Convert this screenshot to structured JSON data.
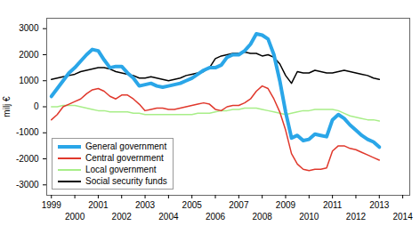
{
  "chart_data": {
    "type": "line",
    "y_label": "milj €",
    "x": [
      1999,
      1999.25,
      1999.5,
      1999.75,
      2000,
      2000.25,
      2000.5,
      2000.75,
      2001,
      2001.25,
      2001.5,
      2001.75,
      2002,
      2002.25,
      2002.5,
      2002.75,
      2003,
      2003.25,
      2003.5,
      2003.75,
      2004,
      2004.25,
      2004.5,
      2004.75,
      2005,
      2005.25,
      2005.5,
      2005.75,
      2006,
      2006.25,
      2006.5,
      2006.75,
      2007,
      2007.25,
      2007.5,
      2007.75,
      2008,
      2008.25,
      2008.5,
      2008.75,
      2009,
      2009.25,
      2009.5,
      2009.75,
      2010,
      2010.25,
      2010.5,
      2010.75,
      2011,
      2011.25,
      2011.5,
      2011.75,
      2012,
      2012.25,
      2012.5,
      2012.75,
      2013
    ],
    "series": [
      {
        "name": "General government",
        "color": "#2aa6e8",
        "values": [
          400,
          700,
          1000,
          1300,
          1500,
          1750,
          2000,
          2200,
          2150,
          1800,
          1500,
          1550,
          1550,
          1300,
          1100,
          800,
          850,
          900,
          800,
          750,
          800,
          850,
          900,
          1000,
          1100,
          1250,
          1400,
          1500,
          1500,
          1600,
          1900,
          2000,
          2000,
          2150,
          2400,
          2800,
          2750,
          2600,
          2000,
          1000,
          -200,
          -1200,
          -1100,
          -1300,
          -1250,
          -1050,
          -1100,
          -1150,
          -500,
          -300,
          -450,
          -700,
          -900,
          -1100,
          -1250,
          -1350,
          -1550
        ]
      },
      {
        "name": "Central government",
        "color": "#e0382c",
        "values": [
          -500,
          -300,
          0,
          100,
          200,
          300,
          500,
          650,
          700,
          600,
          400,
          300,
          450,
          450,
          300,
          100,
          -150,
          -100,
          -50,
          -50,
          -100,
          -100,
          -50,
          0,
          50,
          100,
          150,
          100,
          -100,
          -150,
          0,
          50,
          50,
          150,
          300,
          600,
          800,
          700,
          300,
          -200,
          -900,
          -1800,
          -2200,
          -2400,
          -2450,
          -2400,
          -2400,
          -2350,
          -1700,
          -1500,
          -1500,
          -1600,
          -1650,
          -1750,
          -1850,
          -1950,
          -2050
        ]
      },
      {
        "name": "Local government",
        "color": "#a8ee88",
        "values": [
          0,
          0,
          50,
          50,
          50,
          0,
          -50,
          -100,
          -150,
          -150,
          -200,
          -200,
          -200,
          -200,
          -250,
          -250,
          -300,
          -300,
          -300,
          -300,
          -300,
          -300,
          -300,
          -300,
          -300,
          -250,
          -250,
          -250,
          -200,
          -150,
          -150,
          -100,
          -100,
          -50,
          -50,
          -50,
          -100,
          -150,
          -200,
          -250,
          -300,
          -250,
          -200,
          -150,
          -150,
          -100,
          -100,
          -100,
          -100,
          -150,
          -250,
          -350,
          -400,
          -450,
          -500,
          -500,
          -550
        ]
      },
      {
        "name": "Social security funds",
        "color": "#000000",
        "values": [
          1050,
          1100,
          1150,
          1200,
          1250,
          1350,
          1400,
          1450,
          1500,
          1500,
          1450,
          1350,
          1300,
          1250,
          1200,
          1100,
          1100,
          1150,
          1100,
          1050,
          1000,
          1050,
          1100,
          1200,
          1250,
          1300,
          1350,
          1500,
          1850,
          1950,
          2000,
          2050,
          2050,
          2100,
          2050,
          2050,
          1950,
          2000,
          1900,
          1650,
          1200,
          900,
          1350,
          1300,
          1300,
          1400,
          1350,
          1300,
          1300,
          1350,
          1400,
          1350,
          1300,
          1250,
          1200,
          1100,
          1050
        ]
      }
    ],
    "xlim": [
      1998.8,
      2014.3
    ],
    "xticks": [
      1999,
      2000,
      2001,
      2002,
      2003,
      2004,
      2005,
      2006,
      2007,
      2008,
      2009,
      2010,
      2011,
      2012,
      2013,
      2014
    ],
    "ylim": [
      -3400,
      3400
    ],
    "yticks": [
      -3000,
      -2000,
      -1000,
      0,
      1000,
      2000,
      3000
    ],
    "grid": false,
    "legend": "lower left"
  }
}
